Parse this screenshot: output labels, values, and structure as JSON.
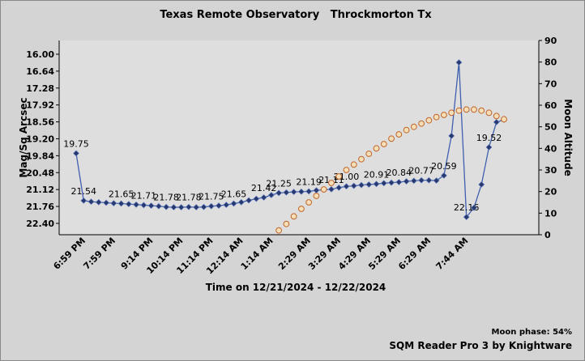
{
  "chart_data": {
    "type": "line",
    "title": "Texas Remote Observatory   Throckmorton Tx",
    "x_label": "Time on 12/21/2024 - 12/22/2024",
    "y_label": "Mag/Sq Arcsec",
    "y2_label": "Moon Altitude",
    "annotations": [
      "Moon phase: 54%",
      "SQM Reader Pro 3 by Knightware"
    ],
    "categories": [
      "6:59 PM",
      null,
      null,
      null,
      "7:59 PM",
      null,
      null,
      null,
      null,
      "9:14 PM",
      null,
      null,
      null,
      "10:14 PM",
      null,
      null,
      null,
      "11:14 PM",
      null,
      null,
      null,
      "12:14 AM",
      null,
      null,
      null,
      "1:14 AM",
      null,
      null,
      null,
      null,
      "2:29 AM",
      null,
      null,
      null,
      "3:29 AM",
      null,
      null,
      null,
      "4:29 AM",
      null,
      null,
      null,
      "5:29 AM",
      null,
      null,
      null,
      "6:29 AM",
      null,
      null,
      null,
      null,
      "7:44 AM",
      null,
      null,
      null,
      null,
      null,
      null
    ],
    "ylim": [
      22.83,
      15.48
    ],
    "yticks": [
      {
        "value": 16.0,
        "label": "16.00"
      },
      16.64,
      17.28,
      17.92,
      18.56,
      {
        "value": 19.2,
        "label": "19.20"
      },
      19.84,
      20.48,
      21.12,
      21.76,
      {
        "value": 22.4,
        "label": "22.40"
      }
    ],
    "y2lim": [
      0,
      90
    ],
    "y2ticks": [
      0,
      10,
      20,
      30,
      40,
      50,
      60,
      70,
      80,
      90
    ],
    "grid": false,
    "series": [
      {
        "color": "#3f5fae",
        "marker_color": "#27396e",
        "values": [
          19.75,
          21.54,
          21.58,
          21.6,
          21.62,
          21.64,
          21.65,
          21.67,
          21.69,
          21.71,
          21.73,
          21.75,
          21.78,
          21.79,
          21.79,
          21.78,
          21.79,
          21.78,
          21.75,
          21.73,
          21.7,
          21.65,
          21.6,
          21.53,
          21.47,
          21.42,
          21.33,
          21.25,
          21.23,
          21.21,
          21.2,
          21.19,
          21.15,
          21.13,
          21.11,
          21.05,
          21.0,
          20.98,
          20.95,
          20.93,
          20.91,
          20.88,
          20.86,
          20.84,
          20.81,
          20.79,
          20.77,
          20.77,
          20.78,
          20.59,
          19.09,
          16.31,
          22.16,
          21.81,
          20.93,
          19.52,
          18.57,
          18.48
        ],
        "value_labels": [
          "19.75",
          "21.54",
          null,
          null,
          null,
          null,
          "21.65",
          null,
          null,
          "21.71",
          null,
          null,
          "21.78",
          null,
          null,
          "21.78",
          null,
          null,
          "21.75",
          null,
          null,
          "21.65",
          null,
          null,
          null,
          "21.42",
          null,
          "21.25",
          null,
          null,
          null,
          "21.19",
          null,
          null,
          "21.11",
          null,
          "21.00",
          null,
          null,
          null,
          "20.91",
          null,
          null,
          "20.84",
          null,
          null,
          "20.77",
          null,
          null,
          "20.59",
          null,
          null,
          "22.16",
          null,
          null,
          "19.52",
          null,
          null
        ]
      },
      {
        "color": "#f6dfb8",
        "stroke": "#c0652a",
        "axis": "y2",
        "values": [
          null,
          null,
          null,
          null,
          null,
          null,
          null,
          null,
          null,
          null,
          null,
          null,
          null,
          null,
          null,
          null,
          null,
          null,
          null,
          null,
          null,
          null,
          null,
          null,
          null,
          null,
          null,
          2,
          5,
          8.5,
          12,
          15,
          18,
          21,
          24,
          27,
          30,
          32.5,
          35,
          37.5,
          40,
          42,
          44.5,
          46.5,
          48.5,
          50,
          51.5,
          53,
          54.5,
          55.5,
          56.5,
          57.5,
          58,
          58,
          57.5,
          56.5,
          55,
          53.5
        ]
      }
    ]
  }
}
